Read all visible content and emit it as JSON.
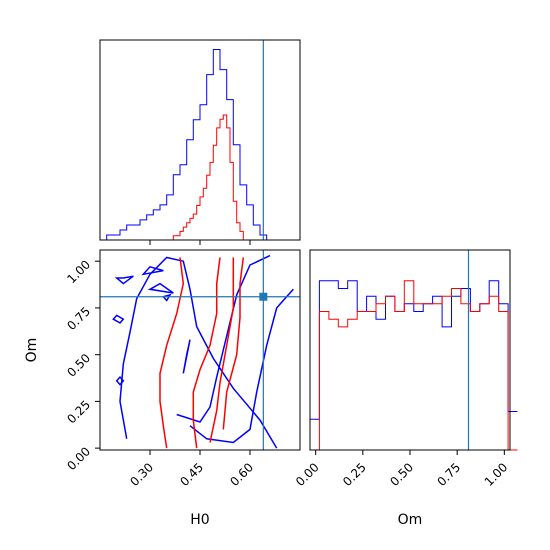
{
  "chart_data": {
    "type": "corner",
    "parameters": [
      "H0",
      "Om"
    ],
    "colors": {
      "blue": "#0000ff",
      "red": "#ff0000",
      "truth": "#1f77b4"
    },
    "truth": {
      "H0": 0.64,
      "Om": 0.81
    },
    "hist_H0": {
      "range": [
        0.15,
        0.75
      ],
      "blue": {
        "edges_start": 0.15,
        "bin_width": 0.02,
        "counts": [
          0,
          1,
          1,
          2,
          3,
          3,
          4,
          5,
          6,
          7,
          9,
          13,
          15,
          20,
          24,
          27,
          33,
          38,
          34,
          28,
          19,
          11,
          7,
          3,
          1,
          0
        ]
      },
      "red": {
        "edges_start": 0.15,
        "bin_width": 0.01,
        "counts": [
          0,
          0,
          0,
          0,
          0,
          0,
          0,
          0,
          0,
          0,
          0,
          0,
          0,
          0,
          0,
          0,
          0,
          0,
          0,
          0,
          0,
          0,
          1,
          1,
          2,
          3,
          4,
          5,
          6,
          8,
          10,
          12,
          15,
          18,
          22,
          26,
          28,
          29,
          26,
          18,
          9,
          4,
          2,
          0,
          0,
          0,
          0,
          0,
          0,
          0,
          0,
          0,
          0,
          0,
          0,
          0,
          0,
          0,
          0,
          0
        ]
      }
    },
    "hist_Om": {
      "range": [
        -0.03,
        1.03
      ],
      "blue": {
        "edges_start": -0.03,
        "bin_width": 0.05,
        "counts": [
          0.4,
          2.2,
          2.2,
          2.1,
          2.2,
          1.8,
          2.0,
          1.7,
          2.0,
          1.8,
          1.9,
          1.8,
          1.9,
          2.0,
          1.6,
          2.0,
          2.1,
          1.8,
          1.9,
          2.2,
          1.9,
          0.5
        ]
      },
      "red": {
        "edges_start": -0.03,
        "bin_width": 0.05,
        "counts": [
          0.0,
          1.8,
          1.7,
          1.6,
          1.7,
          1.8,
          1.8,
          1.9,
          2.0,
          1.8,
          2.2,
          1.9,
          1.9,
          1.9,
          2.0,
          2.1,
          1.9,
          1.8,
          1.9,
          2.0,
          1.8,
          0.0
        ]
      }
    },
    "contours_2d": {
      "xrange": [
        0.15,
        0.75
      ],
      "yrange": [
        -0.01,
        1.06
      ],
      "red": [
        [
          [
            0.35,
            0.0
          ],
          [
            0.34,
            0.12
          ],
          [
            0.33,
            0.25
          ],
          [
            0.33,
            0.4
          ],
          [
            0.35,
            0.55
          ],
          [
            0.38,
            0.72
          ],
          [
            0.4,
            0.88
          ],
          [
            0.39,
            1.02
          ]
        ],
        [
          [
            0.44,
            0.0
          ],
          [
            0.43,
            0.15
          ],
          [
            0.43,
            0.3
          ],
          [
            0.45,
            0.42
          ],
          [
            0.48,
            0.55
          ],
          [
            0.5,
            0.72
          ],
          [
            0.5,
            0.88
          ],
          [
            0.51,
            1.02
          ]
        ],
        [
          [
            0.48,
            0.03
          ],
          [
            0.5,
            0.2
          ],
          [
            0.51,
            0.35
          ],
          [
            0.53,
            0.55
          ],
          [
            0.55,
            0.75
          ],
          [
            0.55,
            0.9
          ],
          [
            0.55,
            1.02
          ]
        ],
        [
          [
            0.52,
            0.1
          ],
          [
            0.53,
            0.3
          ],
          [
            0.56,
            0.5
          ],
          [
            0.57,
            0.7
          ],
          [
            0.57,
            0.88
          ],
          [
            0.58,
            1.02
          ]
        ]
      ],
      "blue": [
        [
          [
            0.23,
            0.05
          ],
          [
            0.21,
            0.25
          ],
          [
            0.22,
            0.45
          ],
          [
            0.24,
            0.62
          ],
          [
            0.26,
            0.8
          ],
          [
            0.3,
            0.93
          ],
          [
            0.35,
            1.02
          ],
          [
            0.4,
            1.0
          ],
          [
            0.42,
            0.85
          ],
          [
            0.44,
            0.65
          ],
          [
            0.49,
            0.48
          ],
          [
            0.55,
            0.32
          ],
          [
            0.63,
            0.15
          ],
          [
            0.68,
            0.0
          ]
        ],
        [
          [
            0.42,
            0.12
          ],
          [
            0.47,
            0.05
          ],
          [
            0.55,
            0.03
          ],
          [
            0.6,
            0.1
          ],
          [
            0.62,
            0.3
          ],
          [
            0.65,
            0.55
          ],
          [
            0.68,
            0.75
          ],
          [
            0.73,
            0.85
          ]
        ],
        [
          [
            0.38,
            0.18
          ],
          [
            0.45,
            0.14
          ],
          [
            0.48,
            0.22
          ],
          [
            0.5,
            0.38
          ],
          [
            0.53,
            0.6
          ],
          [
            0.56,
            0.82
          ],
          [
            0.6,
            0.98
          ],
          [
            0.66,
            1.03
          ]
        ],
        [
          [
            0.4,
            0.4
          ],
          [
            0.41,
            0.5
          ],
          [
            0.42,
            0.58
          ]
        ],
        [
          [
            0.28,
            0.93
          ],
          [
            0.3,
            0.97
          ],
          [
            0.34,
            0.95
          ]
        ],
        [
          [
            0.3,
            0.85
          ],
          [
            0.33,
            0.88
          ],
          [
            0.37,
            0.83
          ]
        ],
        [
          [
            0.22,
            0.91
          ],
          [
            0.25,
            0.92
          ],
          [
            0.22,
            0.88
          ],
          [
            0.2,
            0.91
          ]
        ],
        [
          [
            0.2,
            0.71
          ],
          [
            0.22,
            0.69
          ],
          [
            0.21,
            0.67
          ],
          [
            0.19,
            0.69
          ]
        ],
        [
          [
            0.21,
            0.38
          ],
          [
            0.22,
            0.36
          ],
          [
            0.21,
            0.34
          ],
          [
            0.2,
            0.36
          ]
        ],
        [
          [
            0.34,
            0.81
          ],
          [
            0.36,
            0.82
          ],
          [
            0.35,
            0.79
          ]
        ]
      ]
    },
    "xticks_H0": {
      "values": [
        0.3,
        0.45,
        0.6
      ],
      "labels": [
        "0.30",
        "0.45",
        "0.60"
      ]
    },
    "ticks_Om": {
      "values": [
        0.0,
        0.25,
        0.5,
        0.75,
        1.0
      ],
      "labels": [
        "0.00",
        "0.25",
        "0.50",
        "0.75",
        "1.00"
      ]
    },
    "xlabel_H0": "H0",
    "xlabel_Om": "Om",
    "ylabel_Om": "Om"
  }
}
